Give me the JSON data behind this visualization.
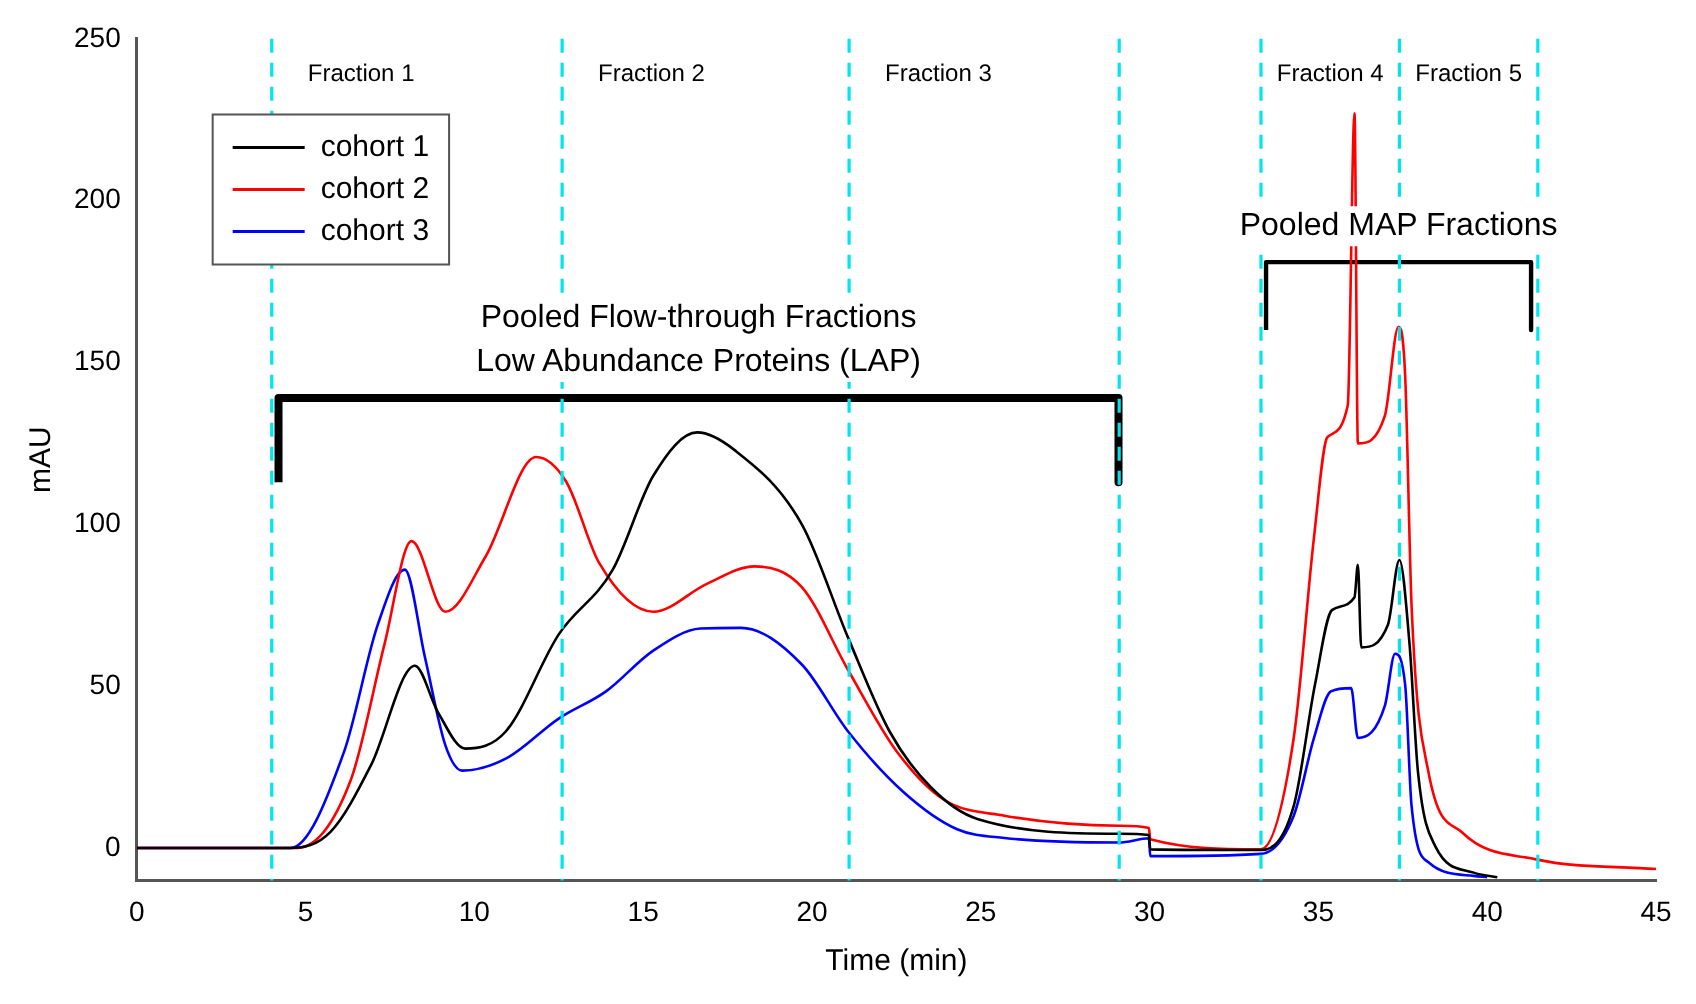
{
  "chart_data": {
    "type": "line",
    "xlabel": "Time (min)",
    "ylabel": "mAU",
    "xlim": [
      0,
      45
    ],
    "xticks": [
      0,
      5,
      10,
      15,
      20,
      25,
      30,
      35,
      40,
      45
    ],
    "ylim": [
      -10,
      250
    ],
    "yticks": [
      0,
      50,
      100,
      150,
      200,
      250
    ],
    "grid": false,
    "legend": "top left",
    "marker": "none",
    "line_style": "solid",
    "series": [
      {
        "name": "cohort 1",
        "color": "#000000",
        "x": [
          0,
          4.55,
          5.74,
          6.94,
          8.24,
          8.92,
          9.73,
          10.93,
          12.5,
          14.1,
          15.3,
          16.6,
          17.7,
          19.7,
          21.07,
          22.3,
          23.5,
          24.9,
          29.1,
          29.98,
          30.02,
          33.3,
          34.27,
          34.9,
          35.4,
          36.07,
          36.17,
          36.27,
          37.06,
          37.4,
          37.7,
          37.95,
          38.46,
          39.6,
          40.3
        ],
        "values": [
          0,
          0,
          5,
          25.6,
          56.3,
          42,
          30.7,
          36,
          66,
          86,
          115,
          128.4,
          123,
          100,
          65,
          36,
          19,
          9,
          4.4,
          4,
          -0.4,
          -0.6,
          13,
          50.5,
          73.5,
          77.5,
          87.5,
          62,
          69,
          89,
          63,
          23.5,
          0.6,
          -7.6,
          -9
        ]
      },
      {
        "name": "cohort 2",
        "color": "#ff0000",
        "x": [
          0,
          4.75,
          6.34,
          7.34,
          8.14,
          9.14,
          10.33,
          11.83,
          12.73,
          13.7,
          15.3,
          16.9,
          18.3,
          19.7,
          21.07,
          22.5,
          23.9,
          25.7,
          29.1,
          29.98,
          30.02,
          33.3,
          34.27,
          34.87,
          35.27,
          35.87,
          36.07,
          36.17,
          36.97,
          37.37,
          37.57,
          37.76,
          38.26,
          39.26,
          41.45,
          45
        ],
        "values": [
          0,
          0,
          21,
          63,
          94.8,
          73,
          90,
          120.8,
          113,
          88,
          73,
          81.7,
          87,
          80.6,
          55,
          30,
          15,
          10,
          6.9,
          6.2,
          2.7,
          -0.4,
          34,
          96,
          127,
          136.7,
          227,
          125,
          133.6,
          161,
          146,
          75,
          23.5,
          4.8,
          -3.5,
          -6.5
        ]
      },
      {
        "name": "cohort 3",
        "color": "#0000ff",
        "x": [
          0,
          4.55,
          6.14,
          7.14,
          7.94,
          8.54,
          9.14,
          9.64,
          10.93,
          12.5,
          13.9,
          15.3,
          16.7,
          17.9,
          19.7,
          21.07,
          22.7,
          24.3,
          25.7,
          29.1,
          29.98,
          30.02,
          33.3,
          34.27,
          34.87,
          35.37,
          35.97,
          36.17,
          36.97,
          37.27,
          37.57,
          37.76,
          38.26,
          39.6,
          40
        ],
        "values": [
          0,
          0,
          29.7,
          69,
          86,
          58.8,
          31.8,
          23.9,
          27.6,
          40,
          48.4,
          61,
          67.8,
          68,
          56.7,
          36,
          17.4,
          5.8,
          3.1,
          1.7,
          3,
          -2.5,
          -1.8,
          10,
          34,
          48.4,
          49.4,
          34,
          44,
          60,
          50.5,
          13,
          -4.4,
          -8.6,
          -9
        ]
      },
      {
        "color": "#000000",
        "x": [
          4.2,
          4.2,
          29.08,
          29.08
        ],
        "values": [
          113,
          139,
          139,
          113
        ]
      },
      {
        "color": "#000000",
        "x": [
          33.45,
          33.45,
          41.3,
          41.3
        ],
        "values": [
          160,
          181,
          181,
          160
        ]
      }
    ],
    "ref_lines": [
      {
        "axis": "x",
        "value": 4,
        "color": "#00e5ee",
        "line_style": "dashed",
        "label": "Fraction 1"
      },
      {
        "axis": "x",
        "value": 12.6,
        "color": "#00e5ee",
        "line_style": "dashed",
        "label": "Fraction 2"
      },
      {
        "axis": "x",
        "value": 21.1,
        "color": "#00e5ee",
        "line_style": "dashed",
        "label": "Fraction 3"
      },
      {
        "axis": "x",
        "value": 29.1,
        "color": "#00e5ee",
        "line_style": "dashed"
      },
      {
        "axis": "x",
        "value": 33.3,
        "color": "#00e5ee",
        "line_style": "dashed",
        "label": "Fraction 4"
      },
      {
        "axis": "x",
        "value": 37.4,
        "color": "#00e5ee",
        "line_style": "dashed",
        "label": "Fraction 5"
      },
      {
        "axis": "x",
        "value": 41.5,
        "color": "#00e5ee",
        "line_style": "dashed"
      }
    ],
    "annotations": [
      "Pooled Flow-through Fractions",
      "Low Abundance Proteins (LAP)",
      "Pooled MAP Fractions"
    ]
  }
}
